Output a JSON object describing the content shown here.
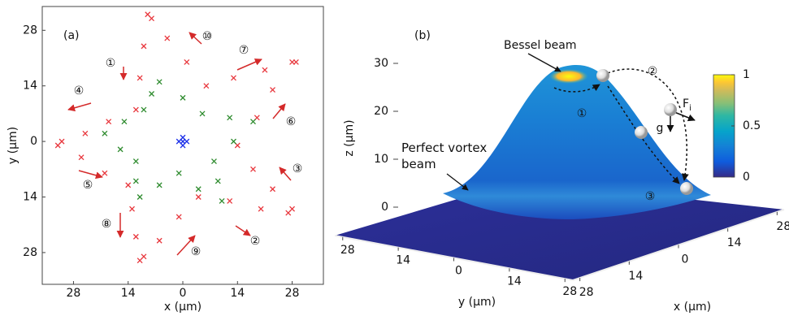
{
  "chart_data": [
    {
      "type": "scatter",
      "panel_label": "(a)",
      "xlabel": "x (μm)",
      "ylabel": "y (μm)",
      "xlim": [
        -36,
        36
      ],
      "ylim": [
        -36,
        34
      ],
      "xticks": [
        {
          "value": -28,
          "label": "28"
        },
        {
          "value": -14,
          "label": "14"
        },
        0,
        14,
        28
      ],
      "yticks": [
        {
          "value": -28,
          "label": "28"
        },
        {
          "value": -14,
          "label": "14"
        },
        0,
        14,
        28
      ],
      "marker": "x",
      "series": [
        {
          "color": "#e8363c",
          "x": [
            -9,
            -4,
            1,
            6,
            13,
            21,
            28,
            23,
            19,
            14,
            18,
            23,
            27,
            20,
            12,
            4,
            -1,
            -6,
            -11,
            -12,
            -13,
            -14,
            -20,
            -26,
            -32,
            -25,
            -19,
            -12,
            -11,
            -10,
            -8,
            29,
            28,
            -10,
            -31
          ],
          "y": [
            32,
            26,
            20,
            14,
            16,
            18,
            20,
            13,
            6,
            -1,
            -7,
            -12,
            -18,
            -17,
            -15,
            -14,
            -19,
            -25,
            -30,
            -24,
            -17,
            -11,
            -8,
            -4,
            -1,
            2,
            5,
            8,
            16,
            24,
            31,
            20,
            -17,
            -29,
            0
          ]
        },
        {
          "color": "#2e8b2e",
          "x": [
            -6,
            0,
            5,
            12,
            18,
            13,
            8,
            9,
            10,
            4,
            -1,
            -6,
            -11,
            -12,
            -12,
            -16,
            -20,
            -15,
            -10,
            -8
          ],
          "y": [
            15,
            11,
            7,
            6,
            5,
            0,
            -5,
            -10,
            -15,
            -12,
            -8,
            -11,
            -14,
            -10,
            -5,
            -2,
            2,
            5,
            8,
            12
          ]
        },
        {
          "color": "#1a2ee8",
          "x": [
            0,
            -1,
            1,
            0,
            0
          ],
          "y": [
            0,
            0,
            0,
            1,
            -1
          ]
        }
      ],
      "annotations": [
        "①",
        "②",
        "③",
        "④",
        "⑤",
        "⑥",
        "⑦",
        "⑧",
        "⑨",
        "⑩"
      ]
    },
    {
      "type": "surface",
      "panel_label": "(b)",
      "xlabel": "x (μm)",
      "ylabel": "y (μm)",
      "zlabel": "z (μm)",
      "xlim": [
        -30,
        30
      ],
      "ylim": [
        -30,
        30
      ],
      "zlim": [
        0,
        30
      ],
      "xticks": [
        {
          "value": -28,
          "label": "28"
        },
        {
          "value": -14,
          "label": "14"
        },
        0,
        14,
        28
      ],
      "yticks": [
        {
          "value": -28,
          "label": "28"
        },
        {
          "value": -14,
          "label": "14"
        },
        0,
        14,
        28
      ],
      "zticks": [
        0,
        10,
        20,
        30
      ],
      "colorbar": {
        "clim": [
          0,
          1
        ],
        "ticks": [
          0,
          0.5,
          1
        ]
      },
      "annotations": {
        "bessel": "Bessel beam",
        "vortex": "Perfect vortex beam",
        "steps": [
          "①",
          "②",
          "③"
        ],
        "force": {
          "text": "F",
          "subscript": "i"
        },
        "gravity": "g"
      }
    }
  ]
}
